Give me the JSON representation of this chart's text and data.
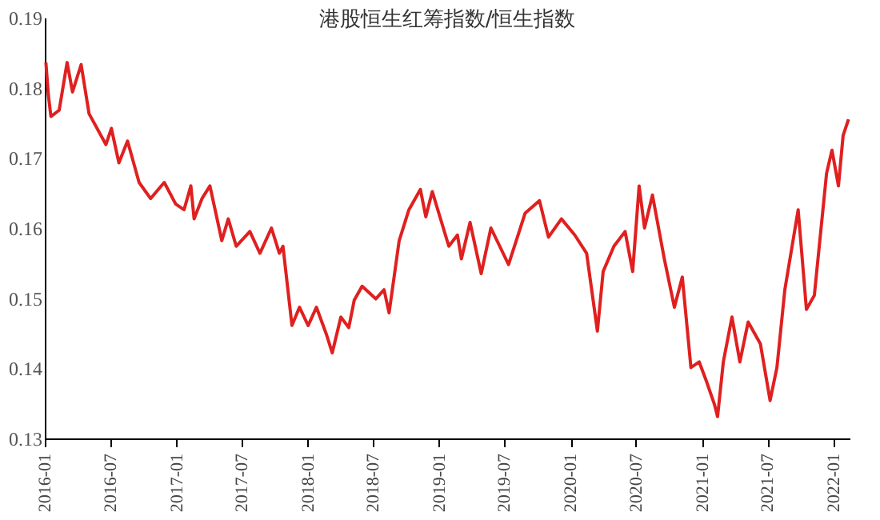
{
  "chart_data": {
    "type": "line",
    "title": "港股恒生红筹指数/恒生指数",
    "x": [
      "2016-01-04",
      "2016-01-11",
      "2016-01-18",
      "2016-02-10",
      "2016-03-03",
      "2016-03-18",
      "2016-04-11",
      "2016-05-03",
      "2016-06-19",
      "2016-07-04",
      "2016-07-25",
      "2016-08-18",
      "2016-09-19",
      "2016-10-21",
      "2016-11-28",
      "2016-12-30",
      "2017-01-22",
      "2017-02-10",
      "2017-02-19",
      "2017-03-13",
      "2017-04-04",
      "2017-05-07",
      "2017-05-25",
      "2017-06-16",
      "2017-07-24",
      "2017-08-21",
      "2017-09-22",
      "2017-10-14",
      "2017-10-24",
      "2017-11-18",
      "2017-12-09",
      "2018-01-02",
      "2018-01-25",
      "2018-02-22",
      "2018-03-10",
      "2018-04-03",
      "2018-04-25",
      "2018-05-10",
      "2018-06-01",
      "2018-07-09",
      "2018-08-01",
      "2018-08-15",
      "2018-09-12",
      "2018-10-09",
      "2018-11-10",
      "2018-11-25",
      "2018-12-13",
      "2019-01-28",
      "2019-02-21",
      "2019-03-04",
      "2019-03-28",
      "2019-04-28",
      "2019-05-25",
      "2019-07-13",
      "2019-08-28",
      "2019-10-07",
      "2019-11-01",
      "2019-12-07",
      "2020-01-13",
      "2020-02-15",
      "2020-03-16",
      "2020-04-01",
      "2020-05-01",
      "2020-06-01",
      "2020-06-22",
      "2020-07-10",
      "2020-07-25",
      "2020-08-16",
      "2020-09-18",
      "2020-10-16",
      "2020-11-07",
      "2020-12-01",
      "2020-12-24",
      "2021-01-12",
      "2021-02-04",
      "2021-02-13",
      "2021-03-01",
      "2021-03-25",
      "2021-04-16",
      "2021-05-09",
      "2021-06-12",
      "2021-07-09",
      "2021-07-28",
      "2021-08-19",
      "2021-09-25",
      "2021-10-18",
      "2021-11-09",
      "2021-12-13",
      "2021-12-28",
      "2022-01-15",
      "2022-01-28",
      "2022-02-12"
    ],
    "series": [
      {
        "color": "#e02020",
        "values": [
          0.1836,
          0.1789,
          0.1759,
          0.1768,
          0.1836,
          0.1794,
          0.1833,
          0.1763,
          0.1719,
          0.1742,
          0.1693,
          0.1724,
          0.1665,
          0.1642,
          0.1665,
          0.1634,
          0.1626,
          0.166,
          0.1613,
          0.1642,
          0.166,
          0.1582,
          0.1613,
          0.1574,
          0.1595,
          0.1564,
          0.16,
          0.1564,
          0.1574,
          0.1461,
          0.1487,
          0.1461,
          0.1487,
          0.1448,
          0.1422,
          0.1473,
          0.1458,
          0.1497,
          0.1517,
          0.1499,
          0.1512,
          0.1479,
          0.1582,
          0.1626,
          0.1655,
          0.1616,
          0.1652,
          0.1574,
          0.159,
          0.1556,
          0.1608,
          0.1535,
          0.16,
          0.1548,
          0.1621,
          0.1639,
          0.1587,
          0.1613,
          0.159,
          0.1564,
          0.1453,
          0.1538,
          0.1574,
          0.1595,
          0.1538,
          0.166,
          0.16,
          0.1647,
          0.1556,
          0.1487,
          0.153,
          0.1401,
          0.1409,
          0.1383,
          0.1349,
          0.1331,
          0.1409,
          0.1473,
          0.1409,
          0.1466,
          0.1435,
          0.1354,
          0.1401,
          0.1512,
          0.1626,
          0.1484,
          0.1504,
          0.1678,
          0.1711,
          0.166,
          0.1732,
          0.1755
        ]
      }
    ],
    "xlim": [
      "2016-01-01",
      "2022-02-15"
    ],
    "xticks": [
      "2016-01",
      "2016-07",
      "2017-01",
      "2017-07",
      "2018-01",
      "2018-07",
      "2019-01",
      "2019-07",
      "2020-01",
      "2020-07",
      "2021-01",
      "2021-07",
      "2022-01"
    ],
    "ylim": [
      0.13,
      0.19
    ],
    "yticks": [
      0.13,
      0.14,
      0.15,
      0.16,
      0.17,
      0.18,
      0.19
    ],
    "grid": false,
    "legend": false,
    "marker": "none",
    "line_style": "solid"
  }
}
